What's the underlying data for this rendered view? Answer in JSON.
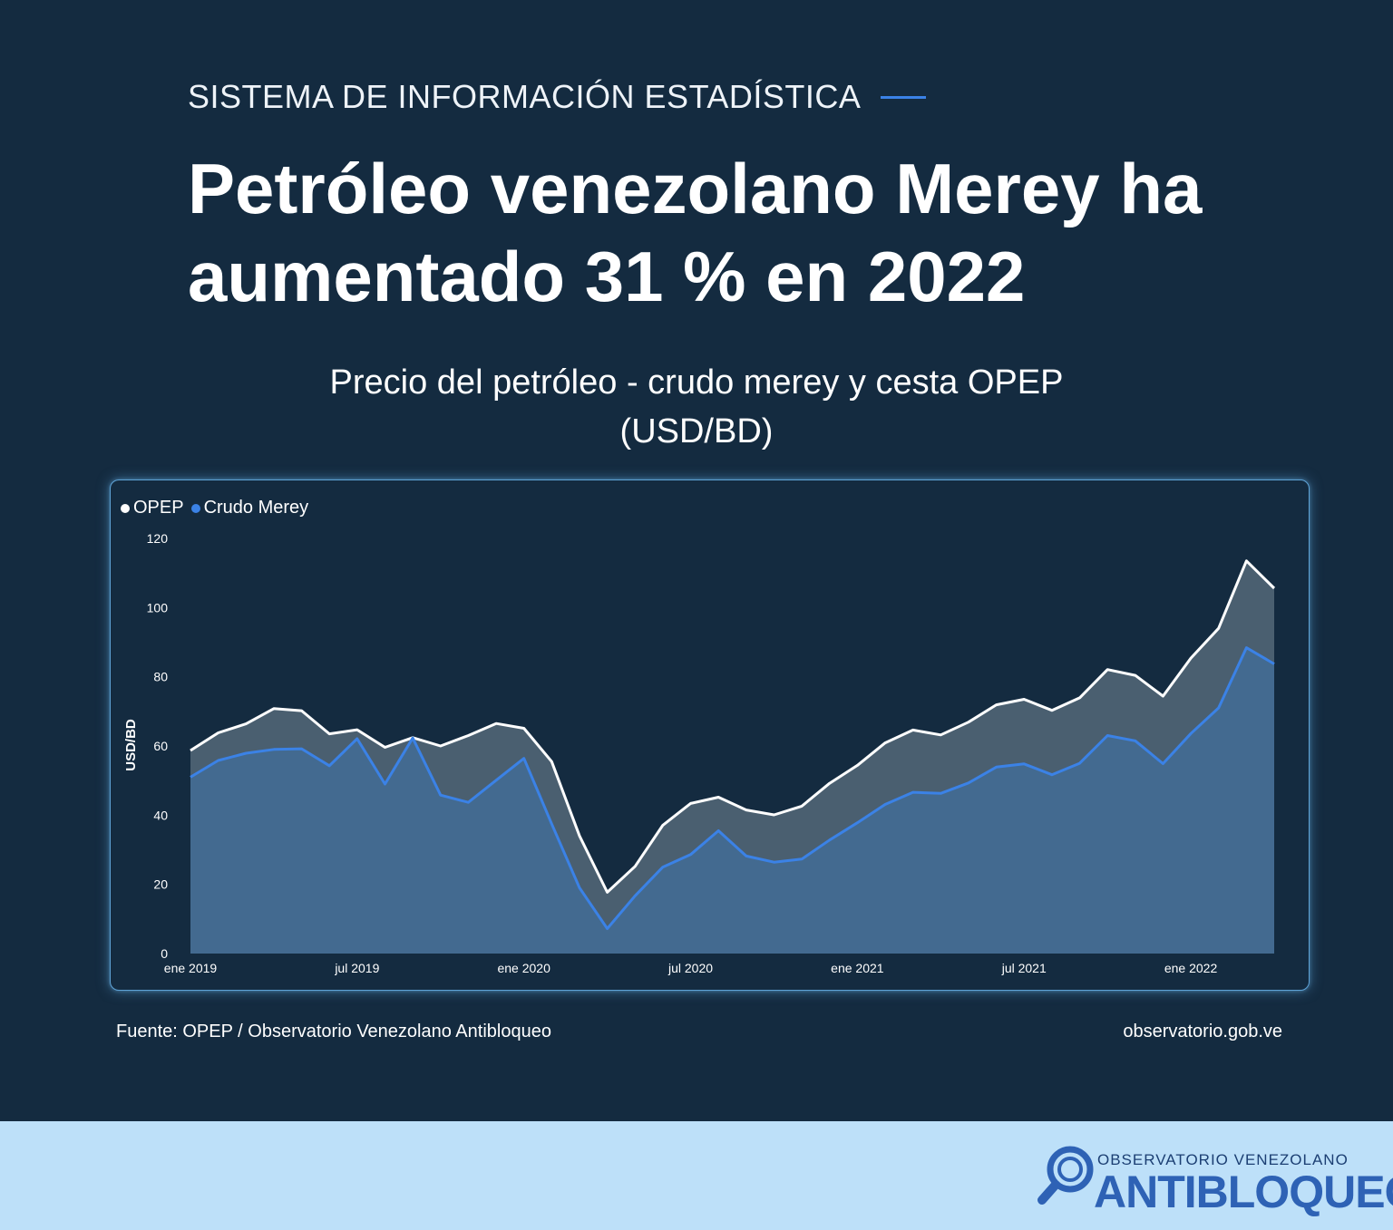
{
  "header": {
    "kicker": "SISTEMA DE INFORMACIÓN ESTADÍSTICA",
    "headline": "Petróleo venezolano Merey ha aumentado 31 % en 2022"
  },
  "chart_data": {
    "type": "area",
    "title_line1": "Precio del petróleo - crudo merey y cesta OPEP",
    "title_line2": "(USD/BD)",
    "ylabel": "USD/BD",
    "xlabel": "",
    "ylim": [
      0,
      120
    ],
    "yticks": [
      "0",
      "20",
      "40",
      "60",
      "80",
      "100",
      "120"
    ],
    "xticks": [
      {
        "label": "ene 2019",
        "index": 0
      },
      {
        "label": "jul 2019",
        "index": 6
      },
      {
        "label": "ene 2020",
        "index": 12
      },
      {
        "label": "jul 2020",
        "index": 18
      },
      {
        "label": "ene 2021",
        "index": 24
      },
      {
        "label": "jul 2021",
        "index": 30
      },
      {
        "label": "ene 2022",
        "index": 36
      }
    ],
    "x": [
      "2019-01",
      "2019-02",
      "2019-03",
      "2019-04",
      "2019-05",
      "2019-06",
      "2019-07",
      "2019-08",
      "2019-09",
      "2019-10",
      "2019-11",
      "2019-12",
      "2020-01",
      "2020-02",
      "2020-03",
      "2020-04",
      "2020-05",
      "2020-06",
      "2020-07",
      "2020-08",
      "2020-09",
      "2020-10",
      "2020-11",
      "2020-12",
      "2021-01",
      "2021-02",
      "2021-03",
      "2021-04",
      "2021-05",
      "2021-06",
      "2021-07",
      "2021-08",
      "2021-09",
      "2021-10",
      "2021-11",
      "2021-12",
      "2022-01",
      "2022-02",
      "2022-03",
      "2022-04"
    ],
    "legend_position": "top-left",
    "grid": false,
    "series": [
      {
        "name": "OPEP",
        "color": "#ffffff",
        "fill": "#4a5f70",
        "values": [
          58.7,
          63.8,
          66.4,
          70.8,
          70.2,
          63.5,
          64.7,
          59.6,
          62.4,
          60.0,
          63.0,
          66.5,
          65.1,
          55.5,
          34.0,
          17.7,
          25.2,
          37.1,
          43.4,
          45.2,
          41.5,
          40.1,
          42.6,
          49.2,
          54.4,
          60.9,
          64.6,
          63.2,
          66.9,
          71.9,
          73.5,
          70.3,
          73.9,
          82.1,
          80.4,
          74.4,
          85.4,
          94.0,
          113.5,
          105.6
        ]
      },
      {
        "name": "Crudo Merey",
        "color": "#3b82e6",
        "fill": "#436a90",
        "values": [
          51.0,
          55.8,
          57.9,
          59.0,
          59.2,
          54.3,
          62.1,
          49.0,
          62.3,
          45.8,
          43.7,
          50.1,
          56.4,
          37.5,
          19.0,
          7.2,
          16.7,
          25.0,
          28.6,
          35.5,
          28.2,
          26.4,
          27.3,
          32.8,
          37.8,
          43.1,
          46.6,
          46.3,
          49.3,
          53.9,
          54.8,
          51.7,
          55.0,
          63.0,
          61.5,
          54.9,
          63.6,
          71.0,
          88.4,
          83.7
        ]
      }
    ]
  },
  "footer": {
    "source": "Fuente: OPEP / Observatorio Venezolano Antibloqueo",
    "url": "observatorio.gob.ve"
  },
  "brand": {
    "top": "OBSERVATORIO VENEZOLANO",
    "main": "ANTIBLOQUEO",
    "logo_icon": "magnifier-icon"
  }
}
